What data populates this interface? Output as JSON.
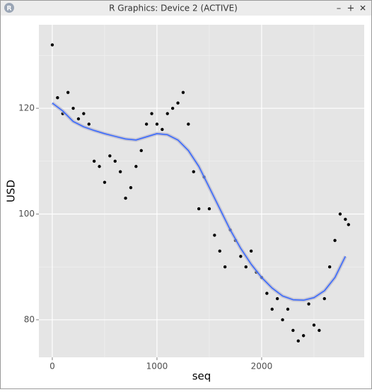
{
  "window": {
    "title": "R Graphics: Device 2 (ACTIVE)",
    "buttons": [
      "–",
      "+",
      "✕"
    ]
  },
  "chart_data": {
    "type": "scatter",
    "xlabel": "seq",
    "ylabel": "USD",
    "xlim": [
      -128,
      2980
    ],
    "ylim": [
      72.9,
      135.8
    ],
    "xticks": [
      0,
      1000,
      2000
    ],
    "yticks": [
      80,
      100,
      120
    ],
    "minor_xticks": [
      500,
      1500,
      2500
    ],
    "minor_yticks": [
      90,
      110,
      130
    ],
    "grid": true,
    "background": "#e5e5e5",
    "series": [
      {
        "type": "scatter",
        "color": "#000000",
        "x": [
          0,
          50,
          100,
          150,
          200,
          250,
          300,
          350,
          400,
          450,
          500,
          550,
          600,
          650,
          700,
          750,
          800,
          850,
          900,
          950,
          1000,
          1050,
          1100,
          1150,
          1200,
          1250,
          1300,
          1350,
          1400,
          1450,
          1500,
          1550,
          1600,
          1650,
          1700,
          1750,
          1800,
          1850,
          1900,
          1950,
          2000,
          2050,
          2100,
          2150,
          2200,
          2250,
          2300,
          2350,
          2400,
          2450,
          2500,
          2550,
          2600,
          2650,
          2700,
          2750,
          2800,
          2830
        ],
        "values": [
          132,
          122,
          119,
          123,
          120,
          118,
          119,
          117,
          110,
          109,
          106,
          111,
          110,
          108,
          103,
          105,
          109,
          112,
          117,
          119,
          117,
          116,
          119,
          120,
          121,
          123,
          117,
          108,
          101,
          107,
          101,
          96,
          93,
          90,
          97,
          95,
          92,
          90,
          93,
          89,
          88,
          85,
          82,
          84,
          80,
          82,
          78,
          76,
          77,
          83,
          79,
          78,
          84,
          90,
          95,
          100,
          99,
          98
        ]
      },
      {
        "type": "line",
        "color": "#3366ff",
        "x": [
          0,
          100,
          200,
          300,
          400,
          500,
          600,
          700,
          800,
          900,
          1000,
          1100,
          1200,
          1300,
          1400,
          1500,
          1600,
          1700,
          1800,
          1900,
          2000,
          2100,
          2200,
          2300,
          2400,
          2500,
          2600,
          2700,
          2800
        ],
        "values": [
          121,
          119.5,
          117.5,
          116.5,
          115.8,
          115.2,
          114.7,
          114.2,
          114,
          114.6,
          115.2,
          115,
          114,
          112,
          109,
          105,
          101,
          97,
          93.5,
          90.5,
          88,
          86,
          84.5,
          83.8,
          83.7,
          84.2,
          85.5,
          88,
          92
        ]
      }
    ]
  }
}
